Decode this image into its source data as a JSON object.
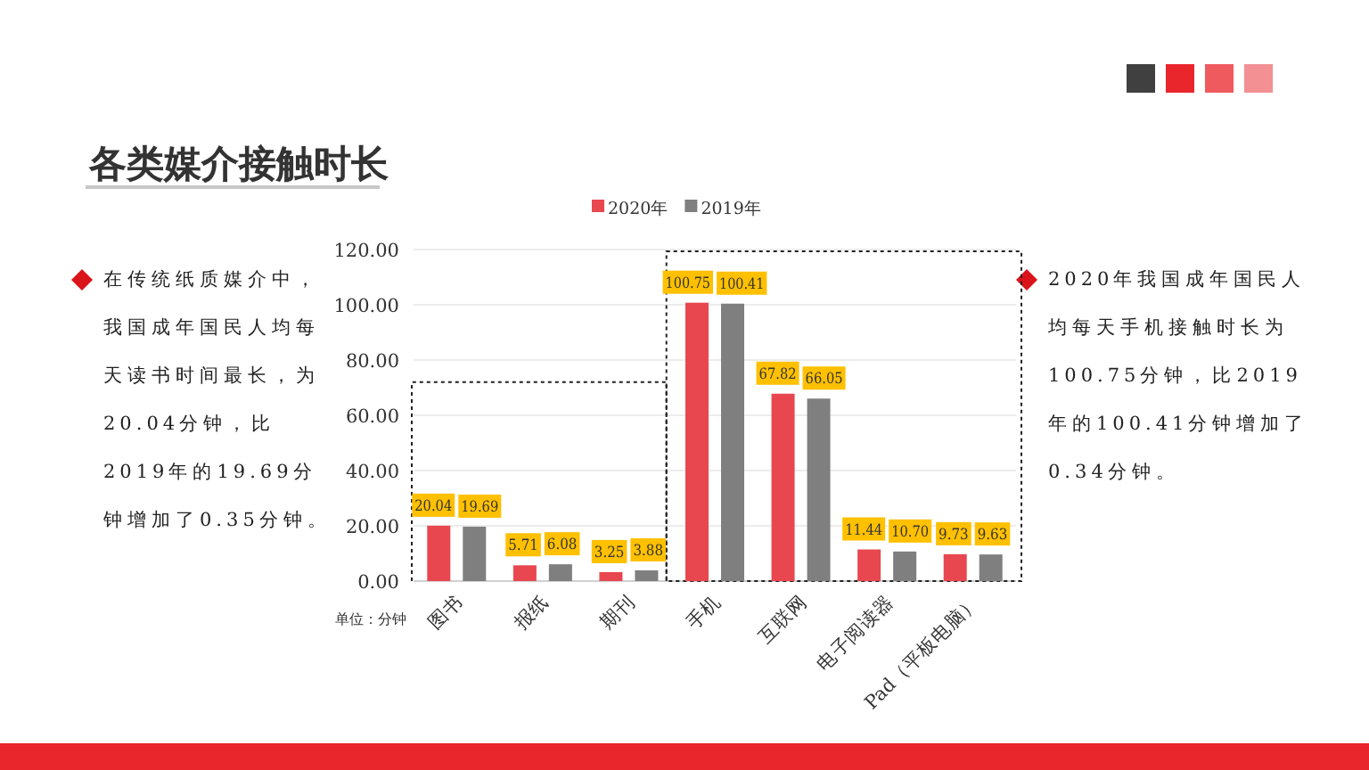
{
  "chart_data": {
    "type": "bar",
    "title": "各类媒介接触时长",
    "categories": [
      "图书",
      "报纸",
      "期刊",
      "手机",
      "互联网",
      "电子阅读器",
      "Pad（平板电脑）"
    ],
    "series": [
      {
        "name": "2020年",
        "color": "#e8474f",
        "values": [
          20.04,
          5.71,
          3.25,
          100.75,
          67.82,
          11.44,
          9.73
        ],
        "value_labels": [
          "20.04",
          "5.71",
          "3.25",
          "100.75",
          "67.82",
          "11.44",
          "9.73"
        ]
      },
      {
        "name": "2019年",
        "color": "#7f7f7f",
        "values": [
          19.69,
          6.08,
          3.88,
          100.41,
          66.05,
          10.7,
          9.63
        ],
        "value_labels": [
          "19.69",
          "6.08",
          "3.88",
          "100.41",
          "66.05",
          "10.70",
          "9.63"
        ]
      }
    ],
    "ylim": [
      0,
      120
    ],
    "yticks": [
      {
        "value": 0,
        "label": "0.00"
      },
      {
        "value": 20,
        "label": "20.00"
      },
      {
        "value": 40,
        "label": "40.00"
      },
      {
        "value": 60,
        "label": "60.00"
      },
      {
        "value": 80,
        "label": "80.00"
      },
      {
        "value": 100,
        "label": "100.00"
      },
      {
        "value": 120,
        "label": "120.00"
      }
    ],
    "grid": "y",
    "legend": "top",
    "annotations": [
      "在传统纸质媒介中，我国成年国民人均每天读书时间最长，为20.04分钟，比2019年的19.69分钟增加了0.35分钟。",
      "2020年我国成年国民人均每天手机接触时长为100.75分钟，比2019年的100.41分钟增加了0.34分钟。",
      "单位：分钟"
    ]
  }
}
